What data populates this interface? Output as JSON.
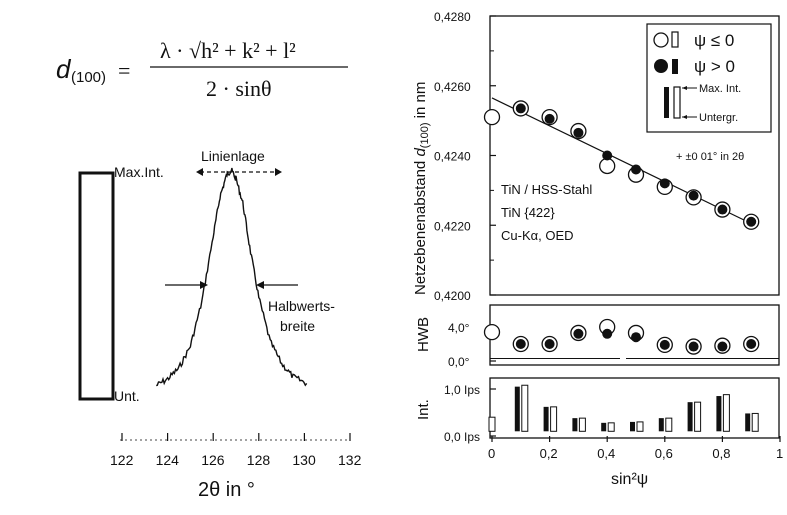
{
  "formula": {
    "lhs_main": "d",
    "lhs_sub": "(100)",
    "equals": "=",
    "numerator": "λ · √h² + k² + l²",
    "denominator": "2 · sinθ"
  },
  "chart_data": [
    {
      "type": "line",
      "title": "",
      "xlabel": "2θ in °",
      "ylabel": "",
      "xlim": [
        122,
        132
      ],
      "xticks": [
        "122",
        "124",
        "126",
        "128",
        "130",
        "132"
      ],
      "annotations": {
        "peak_position": "Linienlage",
        "max_label": "Max.Int.",
        "min_label": "Unt.",
        "fwhm_label_1": "Halbwerts-",
        "fwhm_label_2": "breite"
      },
      "series": [
        {
          "x": [
            123.5,
            124.0,
            124.5,
            125.0,
            125.5,
            126.0,
            126.3,
            126.6,
            126.8,
            127.0,
            127.3,
            127.6,
            128.0,
            128.5,
            129.0,
            129.5,
            130.1
          ],
          "y": [
            0.02,
            0.05,
            0.1,
            0.2,
            0.4,
            0.7,
            0.88,
            0.98,
            1.0,
            0.96,
            0.85,
            0.65,
            0.42,
            0.22,
            0.12,
            0.06,
            0.03
          ]
        }
      ]
    },
    {
      "type": "scatter",
      "ylabel": "Netzebenenabstand d(100) in nm",
      "ylabel_main": "Netzebenenabstand ",
      "ylabel_d": "d",
      "ylabel_sub": "(100)",
      "ylabel_unit": " in nm",
      "ylim": [
        0.42,
        0.428
      ],
      "yticks": [
        "0,4200",
        "0,4220",
        "0,4240",
        "0,4260",
        "0,4280"
      ],
      "sample_text": [
        "TiN / HSS-Stahl",
        "TiN {422}",
        "Cu-Kα,  OED"
      ],
      "error_note": "+ ±0 01° in 2θ",
      "legend": {
        "psi_le": "ψ ≤ 0",
        "psi_gt": "ψ > 0",
        "max_int": "Max. Int.",
        "untergr": "Untergr."
      },
      "fit_line": {
        "x": [
          0.0,
          0.9
        ],
        "y": [
          0.42565,
          0.42205
        ]
      },
      "series": [
        {
          "name": "ψ ≤ 0",
          "x": [
            0.0,
            0.1,
            0.2,
            0.3,
            0.4,
            0.5,
            0.6,
            0.7,
            0.8,
            0.9
          ],
          "y": [
            0.4251,
            0.42535,
            0.4251,
            0.4247,
            0.4237,
            0.42345,
            0.4231,
            0.4228,
            0.42245,
            0.4221
          ]
        },
        {
          "name": "ψ > 0",
          "x": [
            0.1,
            0.2,
            0.3,
            0.4,
            0.5,
            0.6,
            0.7,
            0.8,
            0.9
          ],
          "y": [
            0.42535,
            0.42505,
            0.42465,
            0.424,
            0.4236,
            0.4232,
            0.42285,
            0.42245,
            0.4221
          ]
        }
      ]
    },
    {
      "type": "scatter",
      "ylabel": "HWB",
      "ylim": [
        0,
        5
      ],
      "yticks": [
        "0,0°",
        "4,0°"
      ],
      "series": [
        {
          "name": "ψ ≤ 0",
          "x": [
            0.0,
            0.1,
            0.2,
            0.3,
            0.4,
            0.5,
            0.6,
            0.7,
            0.8,
            0.9
          ],
          "y": [
            3.4,
            2.0,
            2.0,
            3.3,
            4.0,
            3.3,
            1.9,
            1.7,
            1.8,
            2.0
          ]
        },
        {
          "name": "ψ > 0",
          "x": [
            0.1,
            0.2,
            0.3,
            0.4,
            0.5,
            0.6,
            0.7,
            0.8,
            0.9
          ],
          "y": [
            2.0,
            2.0,
            3.2,
            3.2,
            2.8,
            1.9,
            1.7,
            1.7,
            2.0
          ]
        }
      ]
    },
    {
      "type": "bar",
      "ylabel": "Int.",
      "xlabel": "sin²ψ",
      "ylim": [
        0,
        1.2
      ],
      "yticks": [
        "0,0 Ips",
        "1,0 Ips"
      ],
      "xticks": [
        "0",
        "0,2",
        "0,4",
        "0,6",
        "0,8",
        "1"
      ],
      "categories": [
        "0",
        "0.1",
        "0.2",
        "0.3",
        "0.4",
        "0.5",
        "0.6",
        "0.7",
        "0.8",
        "0.9"
      ],
      "series": [
        {
          "name": "Max. Int. (ψ > 0)",
          "values": [
            null,
            1.05,
            0.62,
            0.38,
            0.28,
            0.3,
            0.38,
            0.72,
            0.85,
            0.48
          ]
        },
        {
          "name": "Max. Int. (ψ ≤ 0)",
          "values": [
            0.4,
            1.08,
            0.62,
            0.38,
            0.28,
            0.3,
            0.38,
            0.72,
            0.88,
            0.48
          ]
        },
        {
          "name": "Untergr.",
          "values": [
            0.1,
            0.1,
            0.1,
            0.1,
            0.1,
            0.1,
            0.1,
            0.1,
            0.1,
            0.1
          ]
        }
      ]
    }
  ]
}
